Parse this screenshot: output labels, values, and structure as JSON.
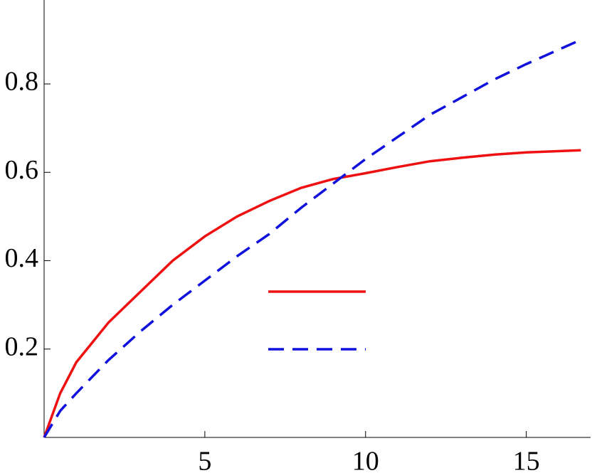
{
  "chart_data": {
    "type": "line",
    "x": [
      0,
      0.5,
      1,
      2,
      3,
      4,
      5,
      6,
      7,
      8,
      9,
      10,
      11,
      12,
      13,
      14,
      15,
      16.7
    ],
    "series": [
      {
        "color": "#ee1111",
        "style": "solid",
        "values": [
          0,
          0.1,
          0.17,
          0.26,
          0.33,
          0.4,
          0.455,
          0.5,
          0.535,
          0.565,
          0.585,
          0.598,
          0.612,
          0.625,
          0.633,
          0.64,
          0.645,
          0.65
        ]
      },
      {
        "color": "#1111dd",
        "style": "dashed",
        "values": [
          0,
          0.06,
          0.1,
          0.175,
          0.24,
          0.3,
          0.355,
          0.41,
          0.46,
          0.52,
          0.575,
          0.63,
          0.68,
          0.73,
          0.77,
          0.81,
          0.845,
          0.9
        ]
      }
    ],
    "xlim": [
      0,
      17
    ],
    "ylim": [
      0,
      0.99
    ],
    "xticks": [
      5,
      10,
      15
    ],
    "yticks": [
      0.2,
      0.4,
      0.6,
      0.8
    ]
  }
}
